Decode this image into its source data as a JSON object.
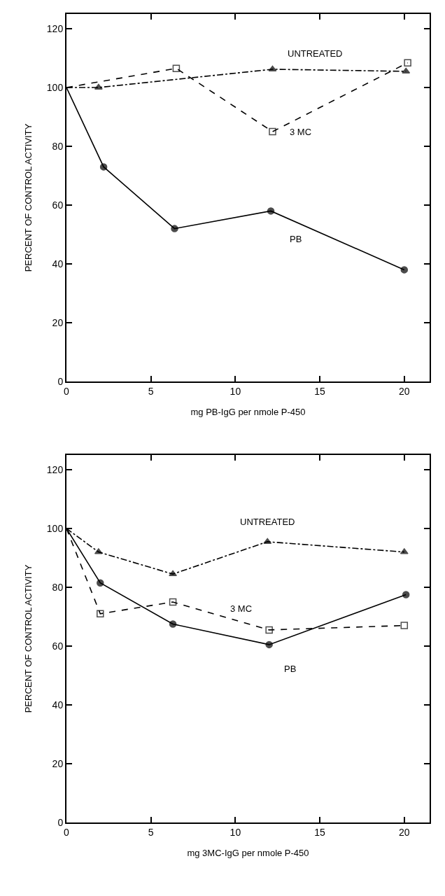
{
  "chart_data": [
    {
      "type": "line",
      "xlabel": "mg PB-IgG per nmole P-450",
      "ylabel": "PERCENT OF CONTROL ACTIVITY",
      "xlim": [
        0,
        21.5
      ],
      "ylim": [
        0,
        125
      ],
      "xticks": [
        0,
        5,
        10,
        15,
        20
      ],
      "yticks": [
        0,
        20,
        40,
        60,
        80,
        100,
        120
      ],
      "grid": false,
      "legend": false,
      "series": [
        {
          "name": "UNTREATED",
          "color": "#000000",
          "marker": "triangle",
          "line_style": "dashdot",
          "x": [
            0,
            1.9,
            12.2,
            20.1
          ],
          "values": [
            100,
            100,
            106.2,
            105.5
          ]
        },
        {
          "name": "3 MC",
          "color": "#000000",
          "marker": "square",
          "line_style": "dashed",
          "x": [
            0,
            6.5,
            12.2,
            20.2
          ],
          "values": [
            100,
            106.5,
            85,
            108.4
          ]
        },
        {
          "name": "PB",
          "color": "#000000",
          "marker": "circle",
          "line_style": "solid",
          "x": [
            0,
            2.2,
            6.4,
            12.1,
            20
          ],
          "values": [
            100,
            73,
            52,
            58,
            38
          ]
        }
      ]
    },
    {
      "type": "line",
      "xlabel": "mg 3MC-IgG per nmole P-450",
      "ylabel": "PERCENT OF CONTROL ACTIVITY",
      "xlim": [
        0,
        21.5
      ],
      "ylim": [
        0,
        125
      ],
      "xticks": [
        0,
        5,
        10,
        15,
        20
      ],
      "yticks": [
        0,
        20,
        40,
        60,
        80,
        100,
        120
      ],
      "grid": false,
      "legend": false,
      "series": [
        {
          "name": "UNTREATED",
          "color": "#000000",
          "marker": "triangle",
          "line_style": "dashdot",
          "x": [
            0,
            1.9,
            6.3,
            11.9,
            20
          ],
          "values": [
            100,
            92,
            84.5,
            95.5,
            92
          ]
        },
        {
          "name": "3 MC",
          "color": "#000000",
          "marker": "square",
          "line_style": "dashed",
          "x": [
            0,
            2,
            6.3,
            12,
            20
          ],
          "values": [
            100,
            71,
            75,
            65.5,
            67
          ]
        },
        {
          "name": "PB",
          "color": "#000000",
          "marker": "circle",
          "line_style": "solid",
          "x": [
            0,
            2,
            6.3,
            12,
            20.1
          ],
          "values": [
            100,
            81.5,
            67.5,
            60.5,
            77.5
          ]
        }
      ]
    }
  ]
}
